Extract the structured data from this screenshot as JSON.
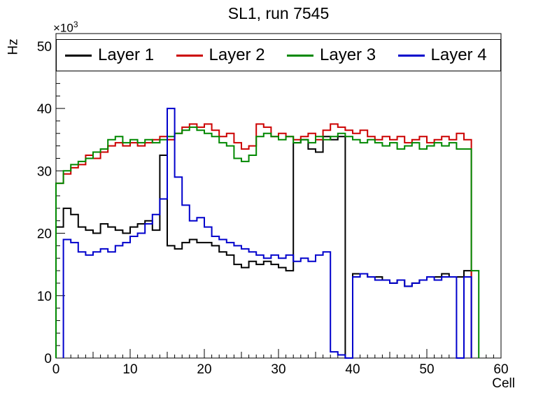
{
  "title": "SL1, run 7545",
  "axes": {
    "x_label": "Cell",
    "y_label": "Hz",
    "y_multiplier": {
      "base": "×10",
      "exponent": "3"
    }
  },
  "chart_data": {
    "type": "line",
    "subtype": "step-histogram",
    "title": "SL1, run 7545",
    "xlabel": "Cell",
    "ylabel": "Hz",
    "value_units": "10^3 Hz",
    "xlim": [
      0,
      60
    ],
    "ylim": [
      0,
      52
    ],
    "x_major_ticks": [
      0,
      10,
      20,
      30,
      40,
      50,
      60
    ],
    "y_major_ticks": [
      0,
      10,
      20,
      30,
      40,
      50
    ],
    "bin_width": 1,
    "grid": false,
    "legend_position": "top-inside-full-width",
    "series": [
      {
        "name": "Layer 1",
        "color": "#000000",
        "values": [
          21,
          24,
          23,
          21,
          20.5,
          20,
          21.5,
          21,
          20.5,
          20,
          21,
          21.5,
          22,
          20.5,
          32.5,
          18,
          17.5,
          18.5,
          19,
          18.5,
          18.5,
          18,
          17,
          16.5,
          15,
          14.5,
          15.5,
          15,
          15.5,
          15,
          14.5,
          14,
          34.5,
          35,
          33.5,
          33,
          35.5,
          35,
          35.5,
          0,
          13.5,
          13.5,
          13,
          13,
          12.5,
          12,
          12.5,
          11.5,
          12,
          12.5,
          13,
          13,
          13.5,
          13,
          13,
          14,
          0
        ]
      },
      {
        "name": "Layer 2",
        "color": "#cc0000",
        "values": [
          28,
          29.5,
          30.5,
          31,
          32.5,
          32,
          33,
          34,
          34.5,
          34,
          34.5,
          34,
          34.5,
          35,
          35.5,
          35,
          36,
          37,
          37.5,
          37,
          37.5,
          36.5,
          35.5,
          36,
          34.5,
          33.5,
          34,
          37.5,
          37,
          35.5,
          36,
          35.5,
          35,
          35.5,
          36,
          35,
          36.5,
          37.5,
          37,
          36.5,
          36,
          36.5,
          35.5,
          35,
          35.5,
          35,
          35.5,
          34.5,
          35,
          35.5,
          34.5,
          35,
          35.5,
          35,
          36,
          35,
          0
        ]
      },
      {
        "name": "Layer 3",
        "color": "#008800",
        "values": [
          28,
          30,
          31,
          31.5,
          32,
          33,
          33.5,
          35,
          35.5,
          34.5,
          35,
          34.5,
          35,
          34.5,
          35,
          35.5,
          36,
          36.5,
          37,
          36.5,
          36,
          35.5,
          34.5,
          34,
          32,
          31.5,
          32.5,
          35.5,
          36,
          35.5,
          35,
          35.5,
          34.5,
          35,
          34.5,
          35.5,
          35,
          35.5,
          36,
          35.5,
          35,
          34.5,
          35,
          34.5,
          34,
          34.5,
          33.5,
          34,
          34.5,
          33.5,
          34,
          34.5,
          34,
          34.5,
          33.5,
          33.5,
          14
        ]
      },
      {
        "name": "Layer 4",
        "color": "#0000cc",
        "values": [
          0,
          19,
          18.5,
          17,
          16.5,
          17,
          17.5,
          17,
          18,
          18.5,
          19.5,
          20,
          21.5,
          23,
          25.5,
          40,
          29,
          24.5,
          22,
          22.5,
          21,
          19.5,
          19,
          18.5,
          18,
          17.5,
          17,
          16.5,
          16,
          16.5,
          16,
          16.5,
          15.5,
          16,
          15.5,
          16.5,
          17,
          1,
          0.5,
          0,
          13,
          13.5,
          13,
          12.5,
          12.5,
          12,
          12.5,
          11.5,
          12,
          12.5,
          13,
          12.5,
          13,
          13,
          0,
          13,
          0
        ]
      }
    ]
  }
}
